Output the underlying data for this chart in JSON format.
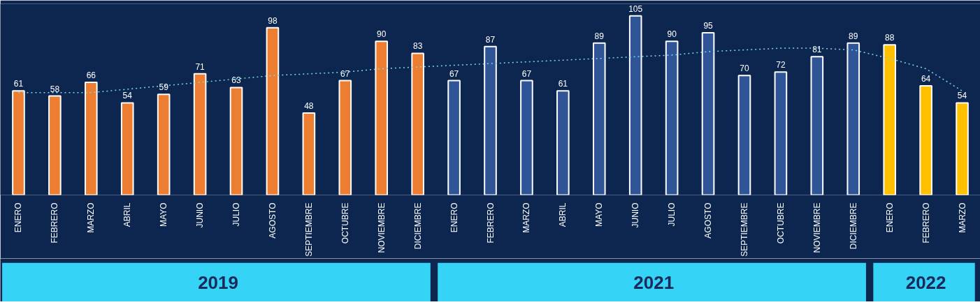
{
  "chart_data": {
    "type": "bar",
    "categories": [
      "ENERO",
      "FEBRERO",
      "MARZO",
      "ABRIL",
      "MAYO",
      "JUNIO",
      "JULIO",
      "AGOSTO",
      "SEPTIEMBRE",
      "OCTUBRE",
      "NOVIEMBRE",
      "DICIEMBRE",
      "ENERO",
      "FEBRERO",
      "MARZO",
      "ABRIL",
      "MAYO",
      "JUNIO",
      "JULIO",
      "AGOSTO",
      "SEPTIEMBRE",
      "OCTUBRE",
      "NOVIEMBRE",
      "DICIEMBRE",
      "ENERO",
      "FEBRERO",
      "MARZO"
    ],
    "series": [
      {
        "values": [
          61,
          58,
          66,
          54,
          59,
          71,
          63,
          98,
          48,
          67,
          90,
          83,
          67,
          87,
          67,
          61,
          89,
          105,
          90,
          95,
          70,
          72,
          81,
          89,
          88,
          64,
          54
        ],
        "value_labels": [
          "61",
          "58",
          "66",
          "54",
          "59",
          "71",
          "63",
          "98",
          "48",
          "67",
          "90",
          "83",
          "67",
          "87",
          "67",
          "61",
          "89",
          "105",
          "90",
          "95",
          "70",
          "72",
          "81",
          "89",
          "88",
          "64",
          "54"
        ],
        "colors": [
          "#ed7d31",
          "#ed7d31",
          "#ed7d31",
          "#ed7d31",
          "#ed7d31",
          "#ed7d31",
          "#ed7d31",
          "#ed7d31",
          "#ed7d31",
          "#ed7d31",
          "#ed7d31",
          "#ed7d31",
          "#2f5597",
          "#2f5597",
          "#2f5597",
          "#2f5597",
          "#2f5597",
          "#2f5597",
          "#2f5597",
          "#2f5597",
          "#2f5597",
          "#2f5597",
          "#2f5597",
          "#2f5597",
          "#ffc000",
          "#ffc000",
          "#ffc000"
        ]
      },
      {
        "type": "line",
        "color": "#7fd8e8",
        "line_style": "dotted",
        "values": [
          60,
          60,
          60,
          62,
          64,
          66,
          68,
          70,
          71,
          72,
          74,
          75,
          76,
          77,
          78,
          79,
          80,
          81,
          82,
          84,
          85,
          86,
          86,
          85,
          80,
          74,
          61
        ]
      }
    ],
    "annotations": [
      "2019",
      "2021",
      "2022"
    ],
    "grid": false,
    "ylim": [
      0,
      112
    ]
  }
}
